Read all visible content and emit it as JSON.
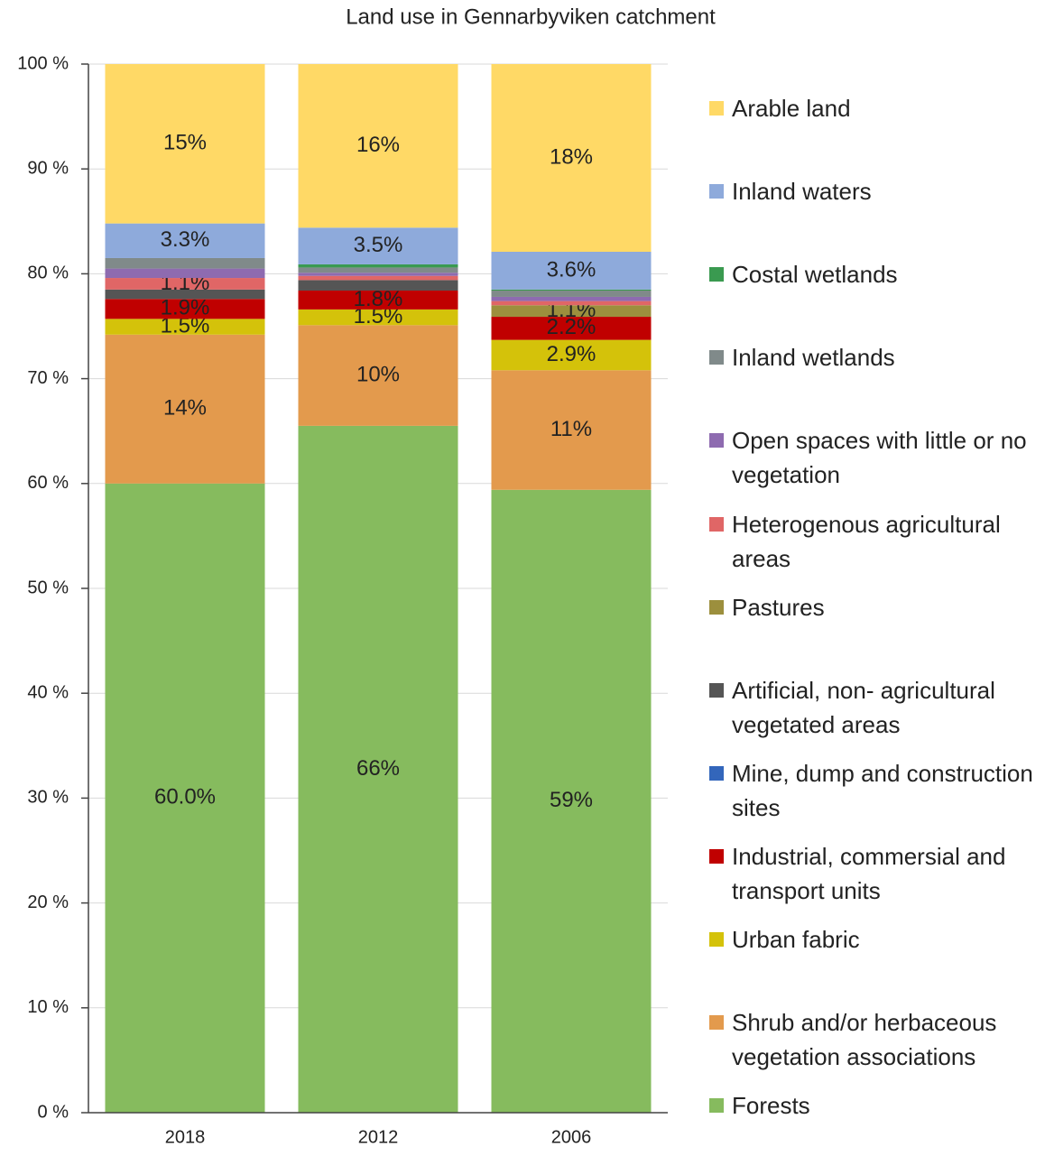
{
  "chart_data": {
    "type": "stacked_bar",
    "title": "Land use in Gennarbyviken catchment",
    "categories": [
      "2018",
      "2012",
      "2006"
    ],
    "ylim": [
      0,
      100
    ],
    "yticks": [
      {
        "value": 0,
        "label": "0 %"
      },
      {
        "value": 10,
        "label": "10 %"
      },
      {
        "value": 20,
        "label": "20 %"
      },
      {
        "value": 30,
        "label": "30 %"
      },
      {
        "value": 40,
        "label": "40 %"
      },
      {
        "value": 50,
        "label": "50 %"
      },
      {
        "value": 60,
        "label": "60 %"
      },
      {
        "value": 70,
        "label": "70 %"
      },
      {
        "value": 80,
        "label": "80 %"
      },
      {
        "value": 90,
        "label": "90 %"
      },
      {
        "value": 100,
        "label": "100 %"
      }
    ],
    "grid": true,
    "legend": "right",
    "series": [
      {
        "name": "Forests",
        "color": "#86bb5e",
        "values": [
          60.0,
          65.5,
          59.4
        ],
        "value_labels": [
          "60.0%",
          "66%",
          "59%"
        ]
      },
      {
        "name": "Shrub and/or herbaceous vegetation associations",
        "color": "#e39a4d",
        "values": [
          14.2,
          9.6,
          11.4
        ],
        "value_labels": [
          "14%",
          "10%",
          "11%"
        ]
      },
      {
        "name": "Urban fabric",
        "color": "#d4c20a",
        "values": [
          1.5,
          1.5,
          2.9
        ],
        "value_labels": [
          "1.5%",
          "1.5%",
          "2.9%"
        ]
      },
      {
        "name": "Industrial, commersial and transport units",
        "color": "#c00000",
        "values": [
          1.9,
          1.8,
          2.2
        ],
        "value_labels": [
          "1.9%",
          "1.8%",
          "2.2%"
        ]
      },
      {
        "name": "Mine, dump and construction sites",
        "color": "#3366bb",
        "values": [
          0,
          0,
          0
        ]
      },
      {
        "name": "Artificial, non- agricultural vegetated areas",
        "color": "#555555",
        "values": [
          0.9,
          1.0,
          0
        ]
      },
      {
        "name": "Pastures",
        "color": "#9c8f3d",
        "values": [
          0,
          0,
          1.1
        ],
        "value_labels": [
          null,
          null,
          "1.1%"
        ]
      },
      {
        "name": "Heterogenous agricultural areas",
        "color": "#e06666",
        "values": [
          1.1,
          0.4,
          0.4
        ],
        "value_labels": [
          "1.1%",
          null,
          null
        ]
      },
      {
        "name": "Open spaces with little or no vegetation",
        "color": "#8e6bb0",
        "values": [
          0.9,
          0.3,
          0.4
        ]
      },
      {
        "name": "Inland wetlands",
        "color": "#808a8a",
        "values": [
          1.0,
          0.5,
          0.6
        ]
      },
      {
        "name": "Costal wetlands",
        "color": "#3a9a50",
        "values": [
          0,
          0.3,
          0.1
        ]
      },
      {
        "name": "Inland waters",
        "color": "#8eaadb",
        "values": [
          3.3,
          3.5,
          3.6
        ],
        "value_labels": [
          "3.3%",
          "3.5%",
          "3.6%"
        ]
      },
      {
        "name": "Arable land",
        "color": "#ffd966",
        "values": [
          15.2,
          15.6,
          17.9
        ],
        "value_labels": [
          "15%",
          "16%",
          "18%"
        ]
      }
    ]
  }
}
